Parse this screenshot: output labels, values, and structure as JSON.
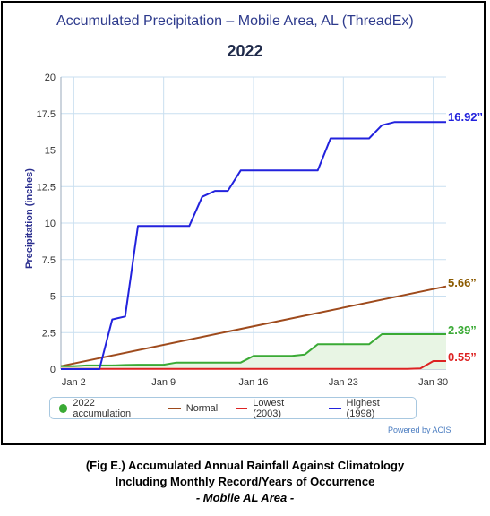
{
  "header": {
    "title": "Accumulated Precipitation – Mobile Area, AL (ThreadEx)",
    "year": "2022"
  },
  "footer": {
    "powered_by": "Powered by ACIS",
    "caption_line1": "(Fig E.) Accumulated Annual Rainfall Against  Climatology",
    "caption_line2": "Including Monthly Record/Years of Occurrence",
    "caption_line3": "- Mobile AL Area -"
  },
  "end_labels": {
    "highest": "16.92”",
    "normal": "5.66”",
    "accumulation": "2.39”",
    "lowest": "0.55”"
  },
  "colors": {
    "accumulation": "#3aaa35",
    "normal": "#9e4a1c",
    "lowest": "#dd2222",
    "highest": "#2222dd",
    "fill": "#e8f5e4",
    "grid": "#c9dff0",
    "normal_label": "#8b5a00"
  },
  "chart_data": {
    "type": "line",
    "ylabel": "Precipitation (inches)",
    "xlabel": "",
    "ylim": [
      0,
      20
    ],
    "yticks": [
      0,
      2.5,
      5,
      7.5,
      10,
      12.5,
      15,
      17.5,
      20
    ],
    "ytick_labels": [
      "0",
      "2.5",
      "5",
      "7.5",
      "10",
      "12.5",
      "15",
      "17.5",
      "20"
    ],
    "x_domain": [
      1,
      31
    ],
    "xticks": [
      2,
      9,
      16,
      23,
      30
    ],
    "xtick_labels": [
      "Jan 2",
      "Jan 9",
      "Jan 16",
      "Jan 23",
      "Jan 30"
    ],
    "grid": true,
    "legend_position": "bottom",
    "series": [
      {
        "name": "2022 accumulation",
        "key": "accumulation",
        "filled": true,
        "points": [
          [
            1,
            0.2
          ],
          [
            2,
            0.2
          ],
          [
            3,
            0.25
          ],
          [
            4,
            0.25
          ],
          [
            5,
            0.25
          ],
          [
            6,
            0.28
          ],
          [
            7,
            0.3
          ],
          [
            8,
            0.3
          ],
          [
            9,
            0.3
          ],
          [
            10,
            0.45
          ],
          [
            11,
            0.45
          ],
          [
            12,
            0.45
          ],
          [
            13,
            0.45
          ],
          [
            14,
            0.45
          ],
          [
            15,
            0.45
          ],
          [
            16,
            0.9
          ],
          [
            17,
            0.9
          ],
          [
            18,
            0.9
          ],
          [
            19,
            0.9
          ],
          [
            20,
            1.0
          ],
          [
            21,
            1.7
          ],
          [
            22,
            1.7
          ],
          [
            23,
            1.7
          ],
          [
            24,
            1.7
          ],
          [
            25,
            1.7
          ],
          [
            26,
            2.39
          ],
          [
            27,
            2.39
          ],
          [
            28,
            2.39
          ],
          [
            29,
            2.39
          ],
          [
            30,
            2.39
          ],
          [
            31,
            2.39
          ]
        ]
      },
      {
        "name": "Normal",
        "key": "normal",
        "filled": false,
        "points": [
          [
            1,
            0.2
          ],
          [
            31,
            5.66
          ]
        ]
      },
      {
        "name": "Lowest (2003)",
        "key": "lowest",
        "filled": false,
        "points": [
          [
            1,
            0.02
          ],
          [
            27,
            0.02
          ],
          [
            28,
            0.02
          ],
          [
            29,
            0.05
          ],
          [
            30,
            0.55
          ],
          [
            31,
            0.55
          ]
        ]
      },
      {
        "name": "Highest (1998)",
        "key": "highest",
        "filled": false,
        "points": [
          [
            1,
            0
          ],
          [
            4,
            0
          ],
          [
            5,
            3.4
          ],
          [
            6,
            3.6
          ],
          [
            7,
            9.8
          ],
          [
            8,
            9.8
          ],
          [
            9,
            9.8
          ],
          [
            10,
            9.8
          ],
          [
            11,
            9.8
          ],
          [
            12,
            11.8
          ],
          [
            13,
            12.2
          ],
          [
            14,
            12.2
          ],
          [
            15,
            13.6
          ],
          [
            16,
            13.6
          ],
          [
            17,
            13.6
          ],
          [
            18,
            13.6
          ],
          [
            19,
            13.6
          ],
          [
            20,
            13.6
          ],
          [
            21,
            13.6
          ],
          [
            22,
            15.8
          ],
          [
            23,
            15.8
          ],
          [
            24,
            15.8
          ],
          [
            25,
            15.8
          ],
          [
            26,
            16.7
          ],
          [
            27,
            16.92
          ],
          [
            28,
            16.92
          ],
          [
            29,
            16.92
          ],
          [
            30,
            16.92
          ],
          [
            31,
            16.92
          ]
        ]
      }
    ]
  }
}
